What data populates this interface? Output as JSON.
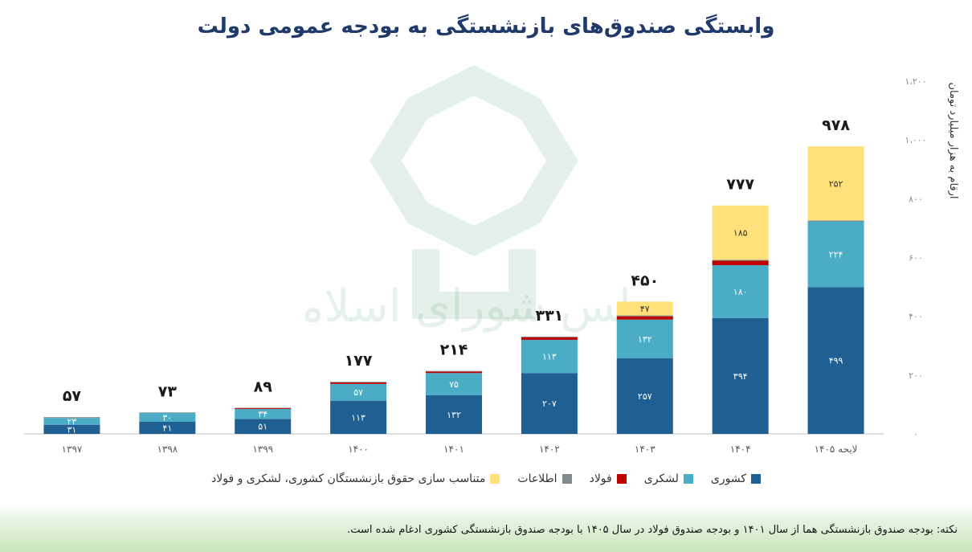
{
  "chart_data": {
    "type": "bar",
    "stacked": true,
    "title": "وابستگی صندوق‌های بازنشستگی به بودجه عمومی دولت",
    "ylabel": "ارقام به هزار میلیارد تومان",
    "ylim": [
      0,
      1200
    ],
    "yticks": [
      0,
      200,
      400,
      600,
      800,
      1000,
      1200
    ],
    "ytick_labels": [
      "۰",
      "۲۰۰",
      "۴۰۰",
      "۶۰۰",
      "۸۰۰",
      "۱،۰۰۰",
      "۱،۲۰۰"
    ],
    "y_axis_side": "right",
    "grid": false,
    "legend_position": "bottom",
    "categories": [
      "۱۳۹۷",
      "۱۳۹۸",
      "۱۳۹۹",
      "۱۴۰۰",
      "۱۴۰۱",
      "۱۴۰۲",
      "۱۴۰۳",
      "۱۴۰۴",
      "لایحه ۱۴۰۵"
    ],
    "totals": [
      57,
      73,
      89,
      177,
      214,
      331,
      450,
      777,
      978
    ],
    "total_labels": [
      "۵۷",
      "۷۳",
      "۸۹",
      "۱۷۷",
      "۲۱۴",
      "۳۳۱",
      "۴۵۰",
      "۷۷۷",
      "۹۷۸"
    ],
    "series": [
      {
        "name": "کشوری",
        "color": "#1f5f91",
        "values": [
          31,
          41,
          51,
          113,
          132,
          207,
          257,
          394,
          499
        ],
        "labels": [
          "۳۱",
          "۴۱",
          "۵۱",
          "۱۱۳",
          "۱۳۲",
          "۲۰۷",
          "۲۵۷",
          "۳۹۴",
          "۴۹۹"
        ]
      },
      {
        "name": "لشکری",
        "color": "#4bacc6",
        "values": [
          23,
          30,
          34,
          57,
          75,
          113,
          132,
          180,
          224
        ],
        "labels": [
          "۲۳",
          "۳۰",
          "۳۴",
          "۵۷",
          "۷۵",
          "۱۱۳",
          "۱۳۲",
          "۱۸۰",
          "۲۲۴"
        ]
      },
      {
        "name": "فولاد",
        "color": "#c00000",
        "values": [
          0,
          0,
          3,
          5,
          5,
          9,
          11,
          15,
          0
        ],
        "labels": [
          "",
          "",
          "",
          "",
          "",
          "",
          "",
          "",
          ""
        ]
      },
      {
        "name": "اطلاعات",
        "color": "#7f8c8d",
        "values": [
          3,
          2,
          1,
          2,
          2,
          2,
          3,
          3,
          3
        ],
        "labels": [
          "",
          "",
          "",
          "",
          "",
          "",
          "",
          "",
          ""
        ]
      },
      {
        "name": "متناسب سازی حقوق بازنشستگان کشوری، لشکری و فولاد",
        "color": "#ffe07a",
        "values": [
          0,
          0,
          0,
          0,
          0,
          0,
          47,
          185,
          252
        ],
        "labels": [
          "",
          "",
          "",
          "",
          "",
          "",
          "۴۷",
          "۱۸۵",
          "۲۵۲"
        ]
      }
    ]
  },
  "watermark_text": "مجلس شورای اسلامی",
  "note": "نکته: بودجه صندوق بازنشستگی هما از سال ۱۴۰۱ و  بودجه صندوق فولاد در سال ۱۴۰۵ با بودجه صندوق بازنشستگی کشوری ادغام شده است."
}
